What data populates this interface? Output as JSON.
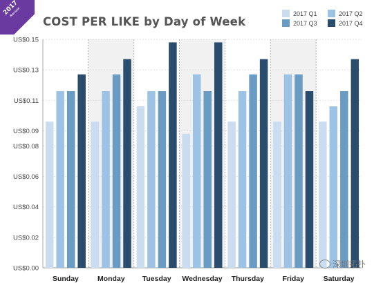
{
  "badge": {
    "year": "2017",
    "sub": "Review"
  },
  "watermark": {
    "text": "深圳拓扑"
  },
  "chart_data": {
    "type": "bar",
    "title": "COST PER LIKE by Day of Week",
    "xlabel": "",
    "ylabel": "",
    "categories": [
      "Sunday",
      "Monday",
      "Tuesday",
      "Wednesday",
      "Thursday",
      "Friday",
      "Saturday"
    ],
    "yticks": [
      0,
      0.02,
      0.04,
      0.06,
      0.08,
      0.09,
      0.11,
      0.13,
      0.15
    ],
    "ytick_labels": [
      "US$0.00",
      "US$0.02",
      "US$0.04",
      "US$0.06",
      "US$0.08",
      "US$0.09",
      "US$0.11",
      "US$0.13",
      "US$0.15"
    ],
    "ylim": [
      0,
      0.15
    ],
    "grid": true,
    "legend_position": "top-right",
    "series": [
      {
        "name": "2017 Q1",
        "color": "#c9dcf0",
        "values": [
          0.096,
          0.096,
          0.106,
          0.088,
          0.096,
          0.096,
          0.096
        ]
      },
      {
        "name": "2017 Q2",
        "color": "#9cc3e6",
        "values": [
          0.116,
          0.116,
          0.116,
          0.127,
          0.116,
          0.127,
          0.106
        ]
      },
      {
        "name": "2017 Q3",
        "color": "#6a9bc3",
        "values": [
          0.116,
          0.127,
          0.116,
          0.116,
          0.127,
          0.127,
          0.116
        ]
      },
      {
        "name": "2017 Q4",
        "color": "#2a4d6e",
        "values": [
          0.127,
          0.137,
          0.148,
          0.148,
          0.137,
          0.116,
          0.137
        ]
      }
    ]
  }
}
